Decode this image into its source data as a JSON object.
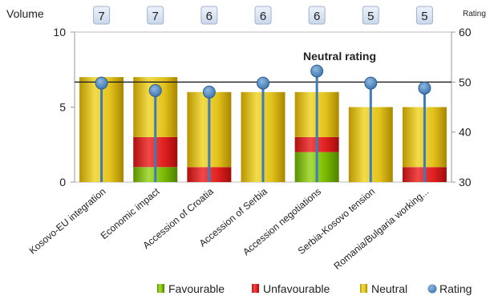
{
  "chart_data": {
    "type": "bar",
    "left_axis_label": "Volume",
    "right_axis_label": "Rating",
    "reference_line_label": "Neutral rating",
    "reference_line_value": 50,
    "categories": [
      "Kosovo-EU integration",
      "Economic impact",
      "Accession of Croatia",
      "Accession of Serbia",
      "Accession negotiations",
      "Serbia-Kosovo tension",
      "Romania/Bulgaria working..."
    ],
    "volume_labels": [
      "7",
      "7",
      "6",
      "6",
      "6",
      "5",
      "5"
    ],
    "series": [
      {
        "name": "Favourable",
        "values": [
          0,
          1,
          0,
          0,
          2,
          0,
          0
        ],
        "color": "#7ab800"
      },
      {
        "name": "Unfavourable",
        "values": [
          0,
          2,
          1,
          0,
          1,
          0,
          1
        ],
        "color": "#e02020"
      },
      {
        "name": "Neutral",
        "values": [
          7,
          4,
          5,
          6,
          3,
          5,
          4
        ],
        "color": "#d8b400"
      }
    ],
    "rating": {
      "name": "Rating",
      "values": [
        49.8,
        48.3,
        48.0,
        49.8,
        52.2,
        49.8,
        48.8
      ],
      "color": "#4a86c0"
    },
    "left_ylim": [
      0,
      10
    ],
    "left_ticks": [
      "0",
      "5",
      "10"
    ],
    "right_ylim": [
      30,
      60
    ],
    "right_ticks": [
      "30",
      "40",
      "50",
      "60"
    ],
    "grid": false,
    "legend_position": "bottom-right"
  }
}
